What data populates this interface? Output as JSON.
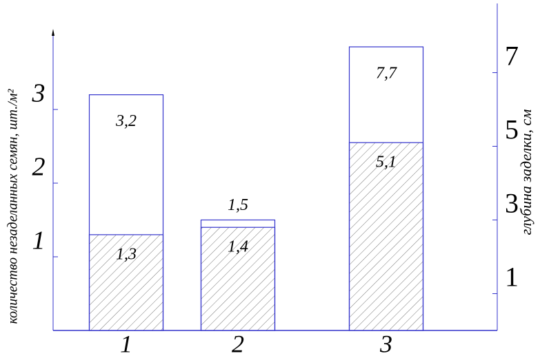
{
  "chart_data": {
    "type": "bar",
    "y_label": "количество незаделанных семян, шт./м²",
    "y2_label": "глубина заделки, см",
    "categories": [
      "1",
      "2",
      "3"
    ],
    "series": [
      {
        "color": "#ffffff",
        "values": [
          3.2,
          1.5,
          null
        ],
        "value_labels": [
          "3,2",
          "1,5",
          null
        ]
      },
      {
        "color": "hatch",
        "values": [
          1.3,
          1.4,
          null
        ],
        "value_labels": [
          "1,3",
          "1,4",
          null
        ]
      },
      {
        "color": "#ffffff",
        "axis": "y2",
        "values": [
          null,
          null,
          7.7
        ],
        "value_labels": [
          null,
          null,
          "7,7"
        ]
      },
      {
        "color": "hatch",
        "axis": "y2",
        "values": [
          null,
          null,
          5.1
        ],
        "value_labels": [
          null,
          null,
          "5,1"
        ]
      }
    ],
    "ylim": [
      0,
      4
    ],
    "yticks": [
      1,
      2,
      3
    ],
    "y2lim": [
      0,
      8
    ],
    "y2ticks": [
      1,
      3,
      5,
      7
    ],
    "grid": false
  }
}
